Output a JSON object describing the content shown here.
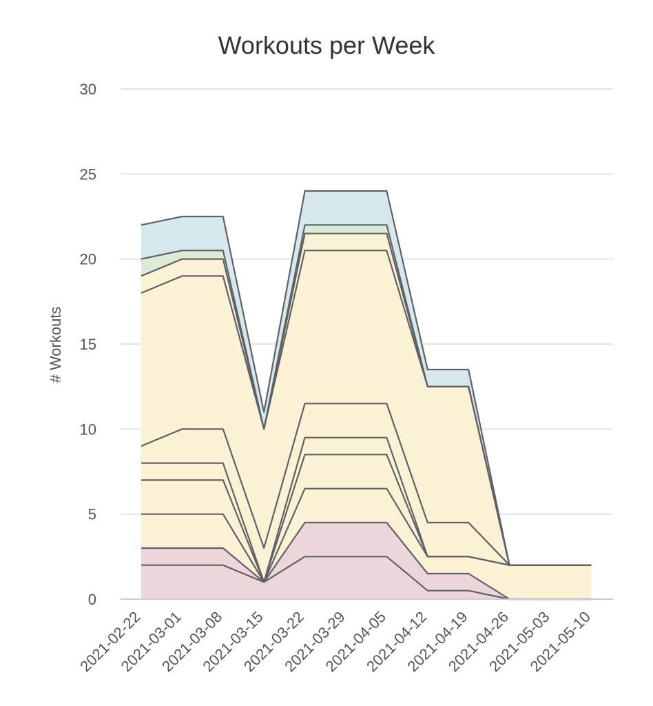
{
  "chart_data": {
    "type": "area",
    "title": "Workouts per Week",
    "ylabel": "# Workouts",
    "xlabel": "",
    "ylim": [
      0,
      30
    ],
    "yticks": [
      0,
      5,
      10,
      15,
      20,
      25,
      30
    ],
    "grid": true,
    "stacked": true,
    "x": [
      "2021-02-22",
      "2021-03-01",
      "2021-03-08",
      "2021-03-15",
      "2021-03-22",
      "2021-03-29",
      "2021-04-05",
      "2021-04-12",
      "2021-04-19",
      "2021-04-26",
      "2021-05-03",
      "2021-05-10"
    ],
    "series": [
      {
        "color": "#ecd6da",
        "values": [
          2,
          2,
          2,
          1,
          2.5,
          2.5,
          2.5,
          0.5,
          0.5,
          0,
          0,
          0
        ]
      },
      {
        "color": "#ecd6da",
        "values": [
          1,
          1,
          1,
          0,
          2,
          2,
          2,
          1,
          1,
          0,
          0,
          0
        ]
      },
      {
        "color": "#fbf1d4",
        "values": [
          2,
          2,
          2,
          0,
          2,
          2,
          2,
          1,
          1,
          2,
          2,
          2
        ]
      },
      {
        "color": "#fbf1d4",
        "values": [
          2,
          2,
          2,
          0,
          2,
          2,
          2,
          0,
          0,
          0,
          0,
          0
        ]
      },
      {
        "color": "#fbf1d4",
        "values": [
          1,
          1,
          1,
          0,
          1,
          1,
          1,
          0,
          0,
          0,
          0,
          0
        ]
      },
      {
        "color": "#fbf1d4",
        "values": [
          1,
          2,
          2,
          2,
          2,
          2,
          2,
          2,
          2,
          0,
          0,
          0
        ]
      },
      {
        "color": "#fbf1d4",
        "values": [
          9,
          9,
          9,
          7,
          9,
          9,
          9,
          8,
          8,
          0,
          0,
          0
        ]
      },
      {
        "color": "#fbf1d4",
        "values": [
          1,
          1,
          1,
          0,
          1,
          1,
          1,
          0,
          0,
          0,
          0,
          0
        ]
      },
      {
        "color": "#dcebd8",
        "values": [
          1,
          0.5,
          0.5,
          0,
          0.5,
          0.5,
          0.5,
          0,
          0,
          0,
          0,
          0
        ]
      },
      {
        "color": "#d6e8ec",
        "values": [
          2,
          2,
          2,
          1,
          2,
          2,
          2,
          1,
          1,
          0,
          0,
          0
        ]
      }
    ]
  }
}
